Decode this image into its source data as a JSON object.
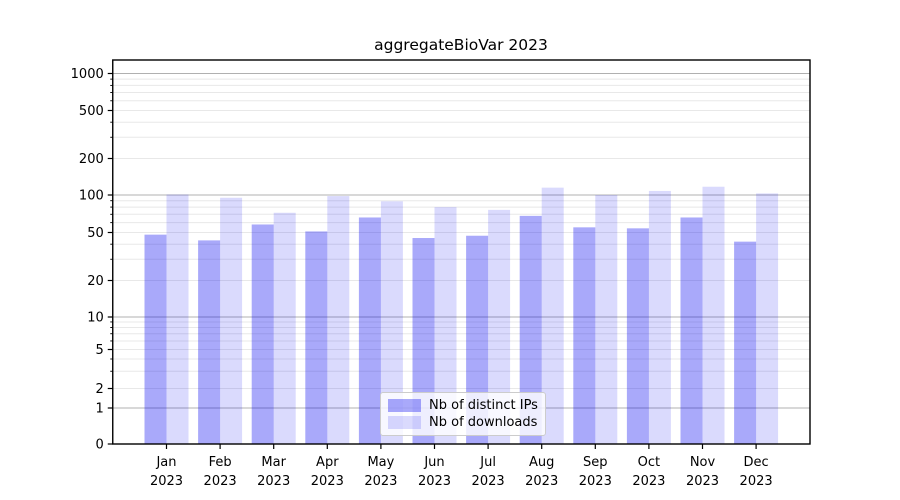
{
  "title": "aggregateBioVar 2023",
  "chart_data": {
    "type": "bar",
    "categories": [
      "Jan",
      "Feb",
      "Mar",
      "Apr",
      "May",
      "Jun",
      "Jul",
      "Aug",
      "Sep",
      "Oct",
      "Nov",
      "Dec"
    ],
    "category_year": "2023",
    "series": [
      {
        "name": "Nb of distinct IPs",
        "color": "rgba(8,8,242,0.35)",
        "values": [
          48,
          43,
          58,
          51,
          66,
          45,
          47,
          68,
          55,
          54,
          66,
          42
        ]
      },
      {
        "name": "Nb of downloads",
        "color": "rgba(8,8,242,0.15)",
        "values": [
          101,
          95,
          72,
          98,
          89,
          80,
          76,
          115,
          100,
          108,
          117,
          103
        ]
      }
    ],
    "title": "aggregateBioVar 2023",
    "xlabel": "",
    "ylabel": "",
    "yscale": "symlog",
    "yticks": [
      0,
      1,
      2,
      5,
      10,
      20,
      50,
      100,
      200,
      500,
      1000
    ],
    "ylim": [
      0,
      1300
    ],
    "grid": true,
    "legend_position": "lower center",
    "colors": {
      "major_gridline": "#b0b0b0",
      "minor_gridline": "#e8e8e8",
      "spine": "#000000",
      "text": "#000000"
    }
  }
}
